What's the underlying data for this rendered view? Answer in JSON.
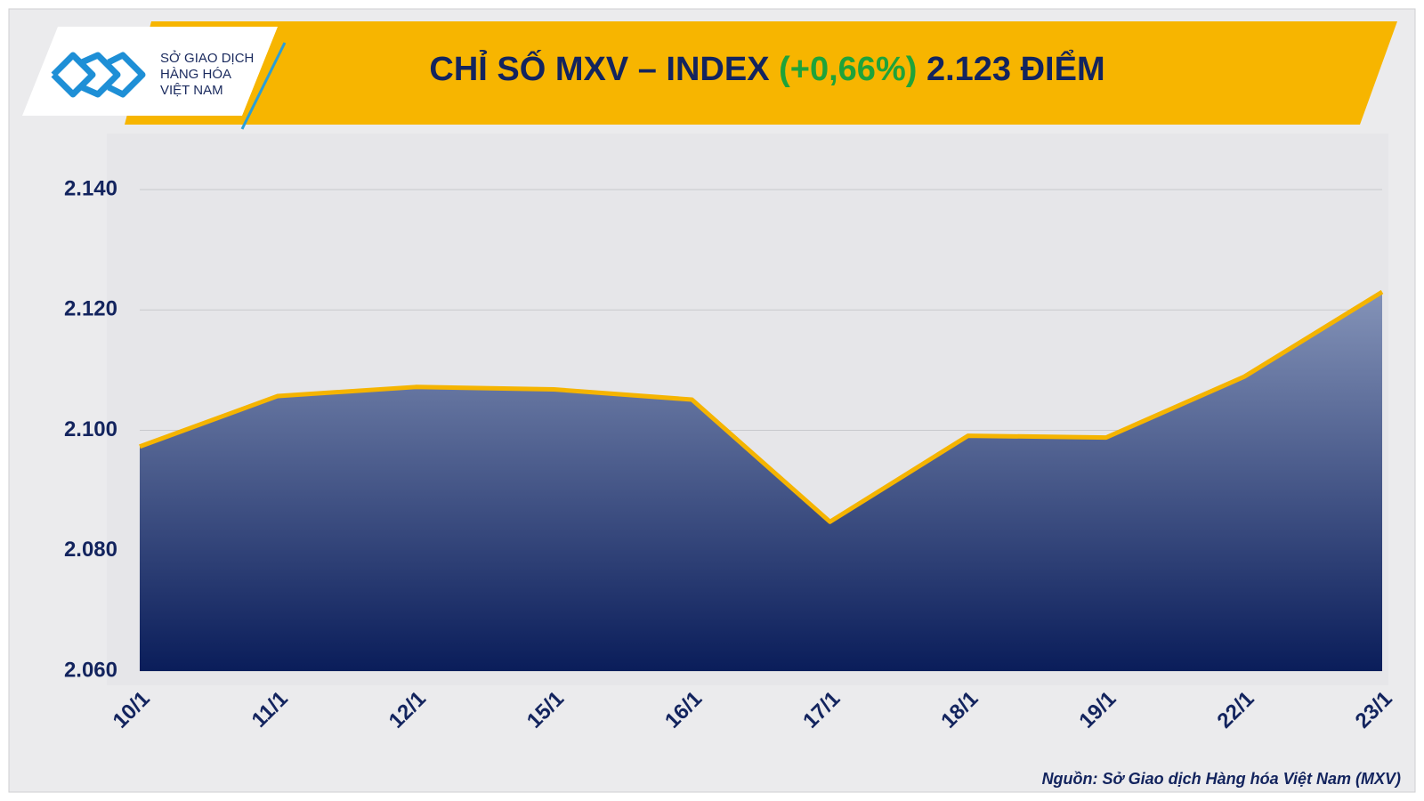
{
  "logo": {
    "lines": [
      "SỞ GIAO DỊCH",
      "HÀNG HÓA",
      "VIỆT NAM"
    ]
  },
  "chart_data": {
    "type": "area",
    "title": "CHỈ SỐ MXV – INDEX",
    "title_change": "(+0,66%)",
    "title_value": "2.123 ĐIỂM",
    "categories": [
      "10/1",
      "11/1",
      "12/1",
      "15/1",
      "16/1",
      "17/1",
      "18/1",
      "19/1",
      "22/1",
      "23/1"
    ],
    "values": [
      2097.3,
      2105.7,
      2107.2,
      2106.8,
      2105.1,
      2084.8,
      2099.1,
      2098.8,
      2108.9,
      2123
    ],
    "color": "#f5b400",
    "fill_top": "#8493b8",
    "fill_bottom": "#0a1d5a",
    "ylim": [
      2060,
      2140
    ],
    "yticks": [
      {
        "value": 2060,
        "label": "2.060"
      },
      {
        "value": 2080,
        "label": "2.080"
      },
      {
        "value": 2100,
        "label": "2.100"
      },
      {
        "value": 2120,
        "label": "2.120"
      },
      {
        "value": 2140,
        "label": "2.140"
      }
    ],
    "grid": true
  },
  "source": "Nguồn: Sở Giao dịch Hàng hóa Việt Nam (MXV)"
}
